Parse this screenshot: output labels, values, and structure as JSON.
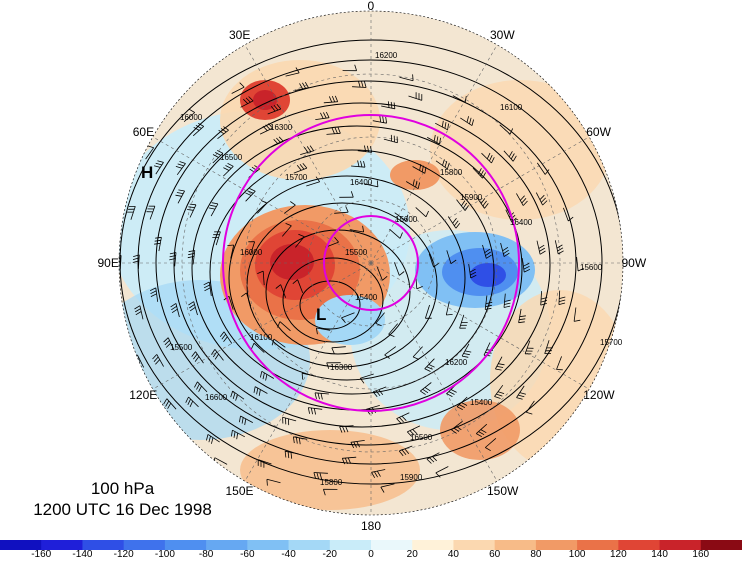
{
  "title": {
    "level": "100 hPa",
    "datetime": "1200 UTC 16 Dec 1998"
  },
  "longitude_labels": [
    {
      "text": "0",
      "lon": 0
    },
    {
      "text": "30W",
      "lon": -30
    },
    {
      "text": "60W",
      "lon": -60
    },
    {
      "text": "90W",
      "lon": -90
    },
    {
      "text": "120W",
      "lon": -120
    },
    {
      "text": "150W",
      "lon": -150
    },
    {
      "text": "180",
      "lon": 180
    },
    {
      "text": "150E",
      "lon": 150
    },
    {
      "text": "120E",
      "lon": 120
    },
    {
      "text": "90E",
      "lon": 90
    },
    {
      "text": "60E",
      "lon": 60
    },
    {
      "text": "30E",
      "lon": 30
    }
  ],
  "pressure_centers": [
    {
      "label": "H"
    },
    {
      "label": "L"
    }
  ],
  "contour_labels": [
    "15400",
    "15500",
    "15600",
    "15700",
    "15800",
    "15900",
    "16000",
    "16100",
    "16200",
    "16300",
    "16400",
    "16500",
    "16600"
  ],
  "colorbar": {
    "ticks": [
      -160,
      -140,
      -120,
      -100,
      -80,
      -60,
      -40,
      -20,
      0,
      20,
      40,
      60,
      80,
      100,
      120,
      140,
      160
    ],
    "colors": [
      "#1f1fd9",
      "#2f4fe6",
      "#3f72ec",
      "#4f8ff0",
      "#66a8f2",
      "#80c0f4",
      "#a4d8f6",
      "#c9ecf9",
      "#eaf8fb",
      "#fff2d9",
      "#fbd8b0",
      "#f7bb88",
      "#f19a66",
      "#ea7248",
      "#e04535",
      "#c9232a",
      "#a8101e"
    ]
  },
  "colors": {
    "polar_circles": "#e000e0",
    "contours": "#000000",
    "cold_anomaly": "#3a6fe0",
    "warm_anomaly": "#d83028"
  }
}
